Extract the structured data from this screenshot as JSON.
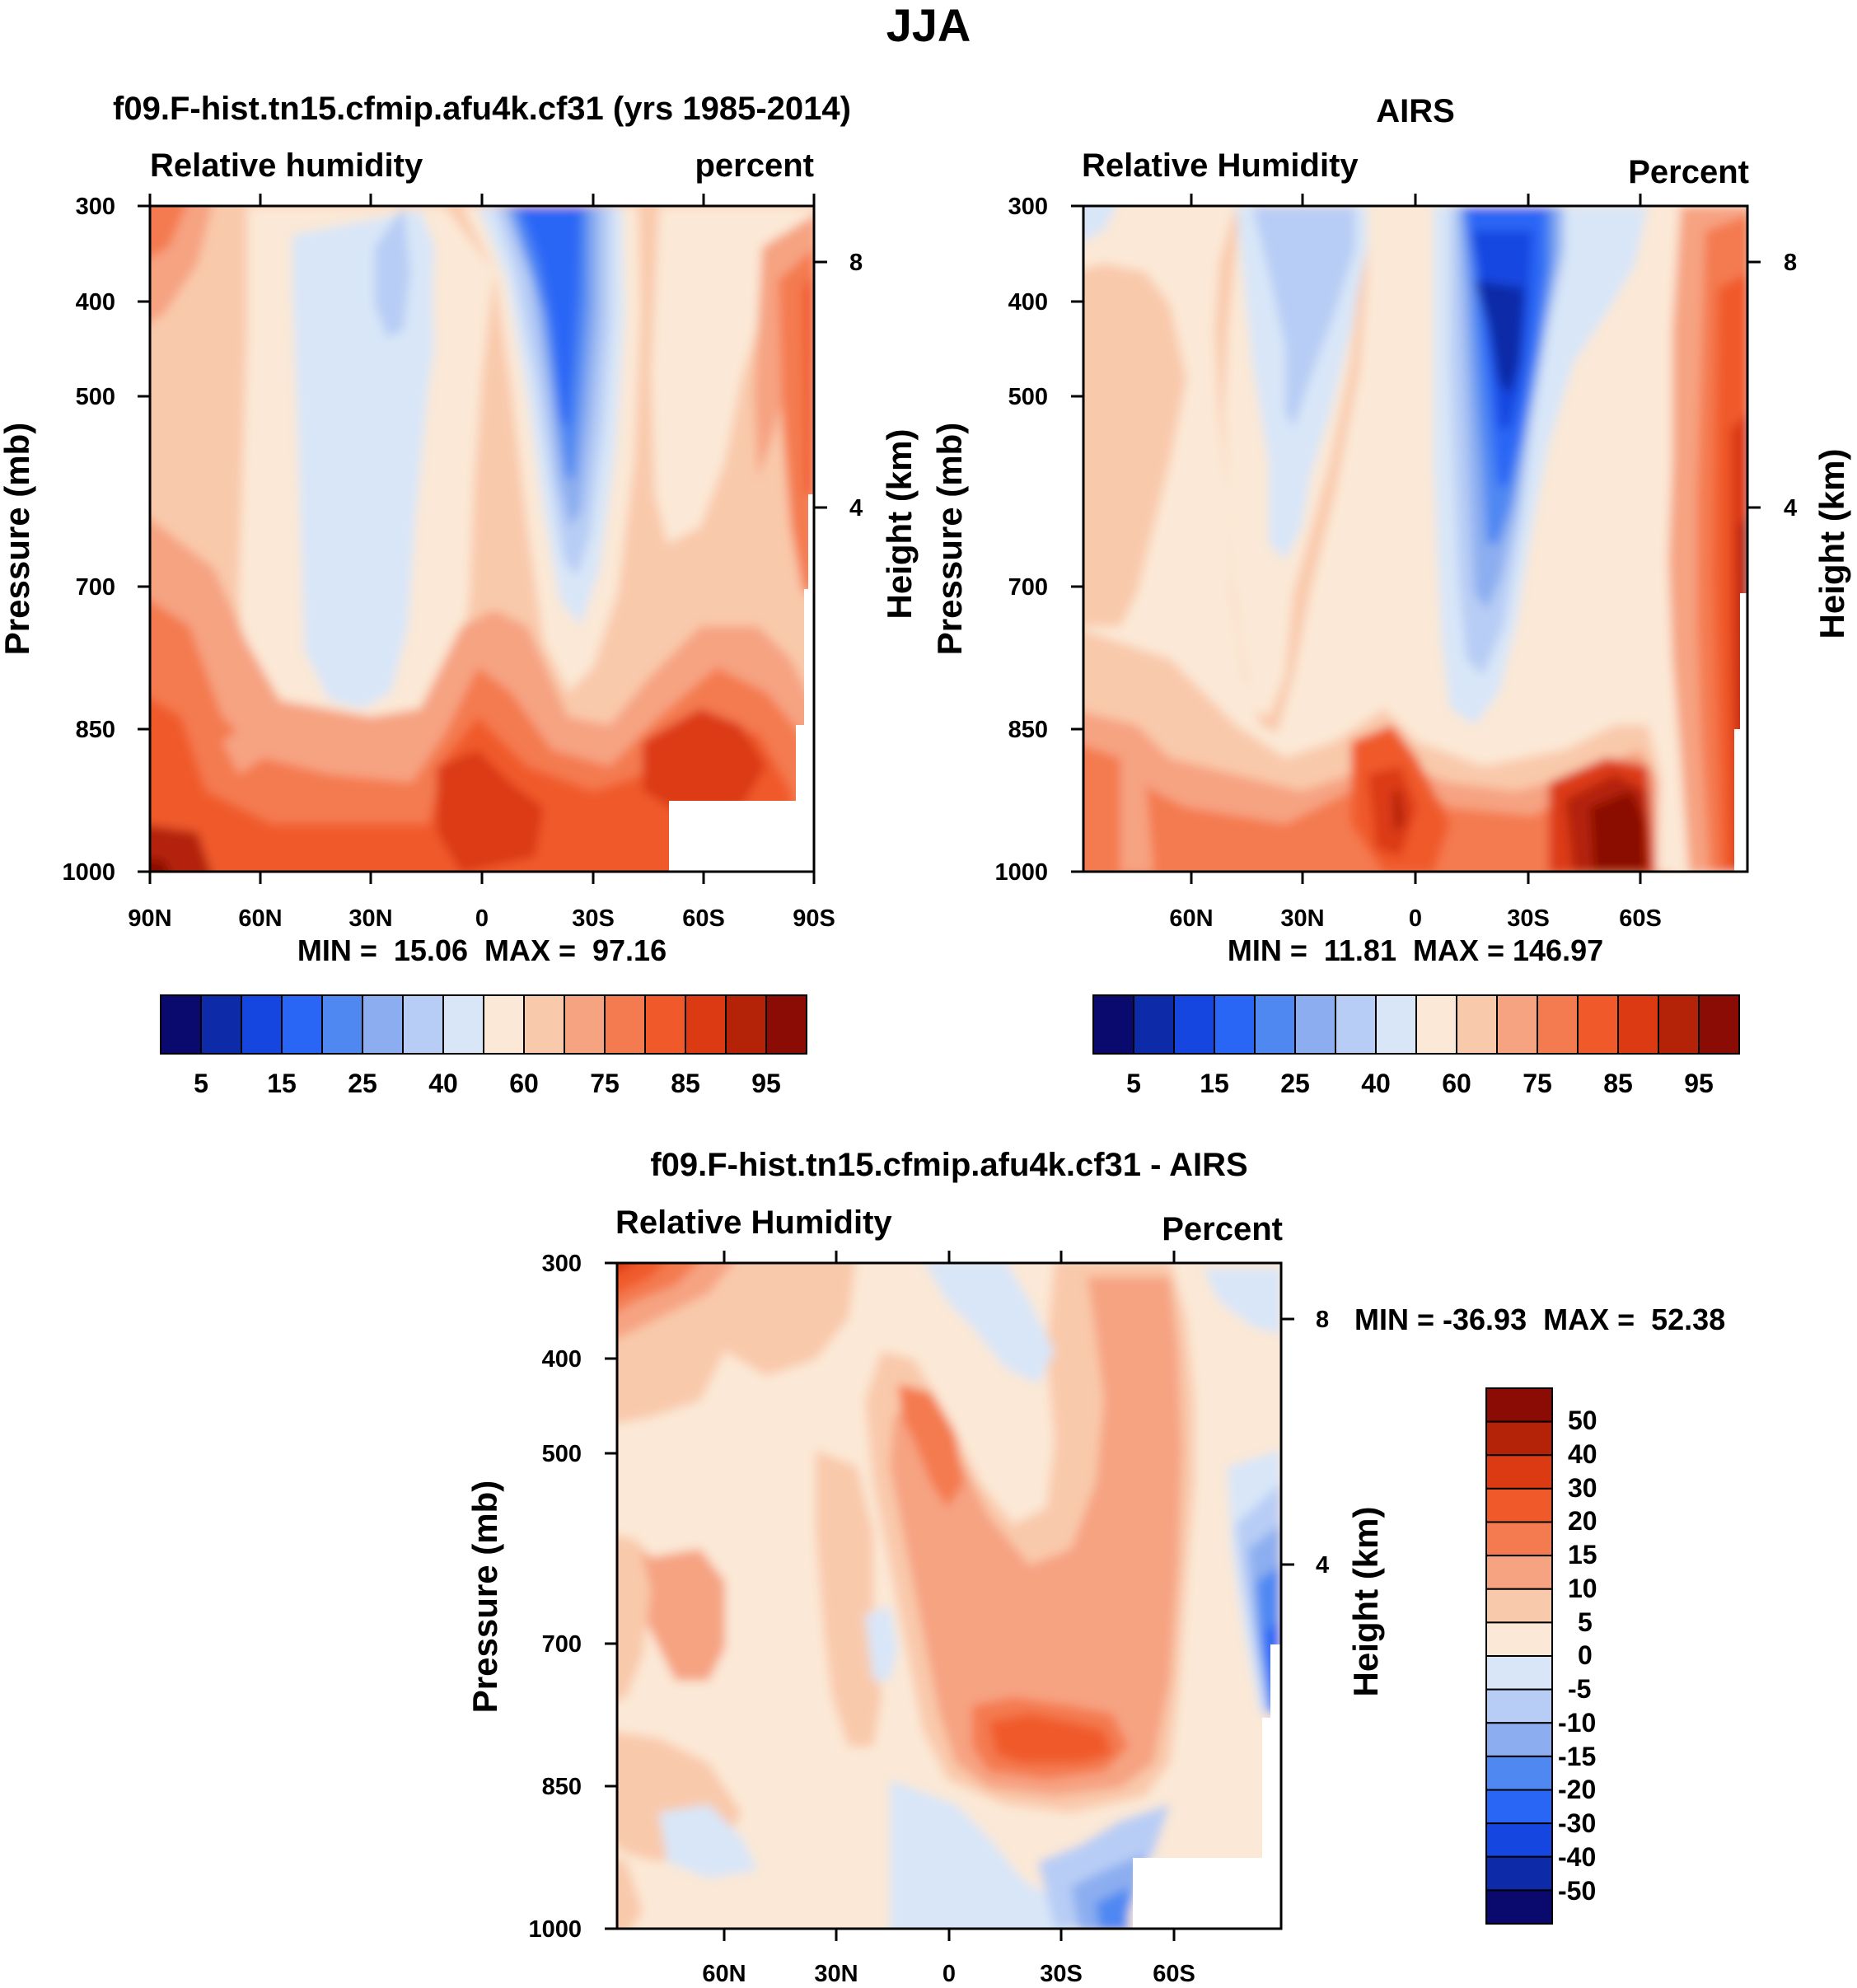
{
  "figure": {
    "title": "JJA"
  },
  "chart_data": [
    {
      "type": "contour",
      "title": "f09.F-hist.tn15.cfmip.afu4k.cf31 (yrs 1985-2014)",
      "left_label": "Relative humidity",
      "right_label": "percent",
      "xlabel": "",
      "ylabel": "Pressure (mb)",
      "y2label": "Height (km)",
      "x_ticks": [
        "90N",
        "60N",
        "30N",
        "0",
        "30S",
        "60S",
        "90S"
      ],
      "y_ticks": [
        "300",
        "400",
        "500",
        "700",
        "850",
        "1000"
      ],
      "y2_ticks": [
        "8",
        "4"
      ],
      "min_max": "MIN =  15.06  MAX =  97.16",
      "colorbar": {
        "orientation": "horizontal",
        "labels": [
          "5",
          "15",
          "25",
          "40",
          "60",
          "75",
          "85",
          "95"
        ],
        "colors": [
          "#0a0a6e",
          "#0d2aa8",
          "#1646e0",
          "#2a66f5",
          "#5088f2",
          "#8caef0",
          "#b8cdf5",
          "#d8e6f8",
          "#fbe8d6",
          "#f9c9ab",
          "#f6a382",
          "#f47a50",
          "#f05a2a",
          "#dc3a12",
          "#b42208",
          "#8a0c05"
        ]
      }
    },
    {
      "type": "contour",
      "title": "AIRS",
      "left_label": "Relative Humidity",
      "right_label": "Percent",
      "xlabel": "",
      "ylabel": "Pressure (mb)",
      "y2label": "Height (km)",
      "x_ticks": [
        "60N",
        "30N",
        "0",
        "30S",
        "60S"
      ],
      "y_ticks": [
        "300",
        "400",
        "500",
        "700",
        "850",
        "1000"
      ],
      "y2_ticks": [
        "8",
        "4"
      ],
      "min_max": "MIN =  11.81  MAX = 146.97",
      "colorbar": {
        "orientation": "horizontal",
        "labels": [
          "5",
          "15",
          "25",
          "40",
          "60",
          "75",
          "85",
          "95"
        ],
        "colors": [
          "#0a0a6e",
          "#0d2aa8",
          "#1646e0",
          "#2a66f5",
          "#5088f2",
          "#8caef0",
          "#b8cdf5",
          "#d8e6f8",
          "#fbe8d6",
          "#f9c9ab",
          "#f6a382",
          "#f47a50",
          "#f05a2a",
          "#dc3a12",
          "#b42208",
          "#8a0c05"
        ]
      }
    },
    {
      "type": "contour",
      "title": "f09.F-hist.tn15.cfmip.afu4k.cf31 - AIRS",
      "left_label": "Relative Humidity",
      "right_label": "Percent",
      "xlabel": "",
      "ylabel": "Pressure (mb)",
      "y2label": "Height (km)",
      "x_ticks": [
        "60N",
        "30N",
        "0",
        "30S",
        "60S"
      ],
      "y_ticks": [
        "300",
        "400",
        "500",
        "700",
        "850",
        "1000"
      ],
      "y2_ticks": [
        "8",
        "4"
      ],
      "min_max": "MIN = -36.93  MAX =  52.38",
      "colorbar": {
        "orientation": "vertical",
        "labels": [
          "50",
          "40",
          "30",
          "20",
          "15",
          "10",
          "5",
          "0",
          "-5",
          "-10",
          "-15",
          "-20",
          "-30",
          "-40",
          "-50"
        ],
        "colors": [
          "#8a0c05",
          "#b42208",
          "#dc3a12",
          "#f05a2a",
          "#f47a50",
          "#f6a382",
          "#f9c9ab",
          "#fbe8d6",
          "#d8e6f8",
          "#b8cdf5",
          "#8caef0",
          "#5088f2",
          "#2a66f5",
          "#1646e0",
          "#0d2aa8",
          "#0a0a6e"
        ]
      }
    }
  ]
}
